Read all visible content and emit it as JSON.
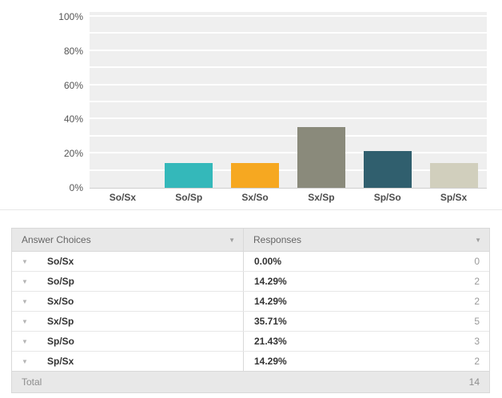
{
  "chart_data": {
    "type": "bar",
    "title": "",
    "xlabel": "",
    "ylabel": "",
    "categories": [
      "So/Sx",
      "So/Sp",
      "Sx/So",
      "Sx/Sp",
      "Sp/So",
      "Sp/Sx"
    ],
    "values": [
      0,
      14.29,
      14.29,
      35.71,
      21.43,
      14.29
    ],
    "bar_colors": [
      "#cccccc",
      "#34b8ba",
      "#f6a821",
      "#8a8a7b",
      "#305f6e",
      "#d1cfbd"
    ],
    "ylim": [
      0,
      100
    ],
    "ytick_labels": [
      "100%",
      "80%",
      "60%",
      "40%",
      "20%",
      "0%"
    ],
    "ytick_values": [
      100,
      80,
      60,
      40,
      20,
      0
    ],
    "gridline_step_percent": 10,
    "plot_background": "#efefef",
    "gridline_color": "#ffffff",
    "legend": "none"
  },
  "table": {
    "headers": [
      {
        "label": "Answer Choices",
        "sort_icon": "▼"
      },
      {
        "label": "Responses",
        "sort_icon": "▼"
      }
    ],
    "row_expander_icon": "▼",
    "rows": [
      {
        "choice": "So/Sx",
        "percent": "0.00%",
        "count": "0"
      },
      {
        "choice": "So/Sp",
        "percent": "14.29%",
        "count": "2"
      },
      {
        "choice": "Sx/So",
        "percent": "14.29%",
        "count": "2"
      },
      {
        "choice": "Sx/Sp",
        "percent": "35.71%",
        "count": "5"
      },
      {
        "choice": "Sp/So",
        "percent": "21.43%",
        "count": "3"
      },
      {
        "choice": "Sp/Sx",
        "percent": "14.29%",
        "count": "2"
      }
    ],
    "total": {
      "label": "Total",
      "value": "14"
    }
  }
}
